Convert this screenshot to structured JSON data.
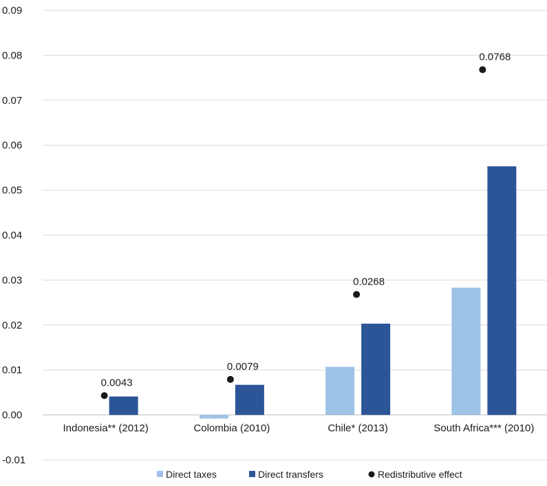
{
  "chart_data": {
    "type": "bar",
    "categories": [
      "Indonesia** (2012)",
      "Colombia (2010)",
      "Chile* (2013)",
      "South Africa*** (2010)"
    ],
    "series": [
      {
        "name": "Direct taxes",
        "values": [
          0.0,
          -0.0008,
          0.0107,
          0.0283
        ],
        "color": "#9dc3e6"
      },
      {
        "name": "Direct transfers",
        "values": [
          0.0041,
          0.0067,
          0.0203,
          0.0553
        ],
        "color": "#2c5597"
      }
    ],
    "points": {
      "name": "Redistributive effect",
      "values": [
        0.0043,
        0.0079,
        0.0268,
        0.0768
      ],
      "labels": [
        "0.0043",
        "0.0079",
        "0.0268",
        "0.0768"
      ],
      "color": "#1a1a1a"
    },
    "yticks": [
      "0.09",
      "0.08",
      "0.07",
      "0.06",
      "0.05",
      "0.04",
      "0.03",
      "0.02",
      "0.01",
      "0.00",
      "-0.01"
    ],
    "ylim": [
      -0.01,
      0.09
    ],
    "grid": true,
    "legend_position": "bottom",
    "title": "",
    "xlabel": "",
    "ylabel": ""
  }
}
